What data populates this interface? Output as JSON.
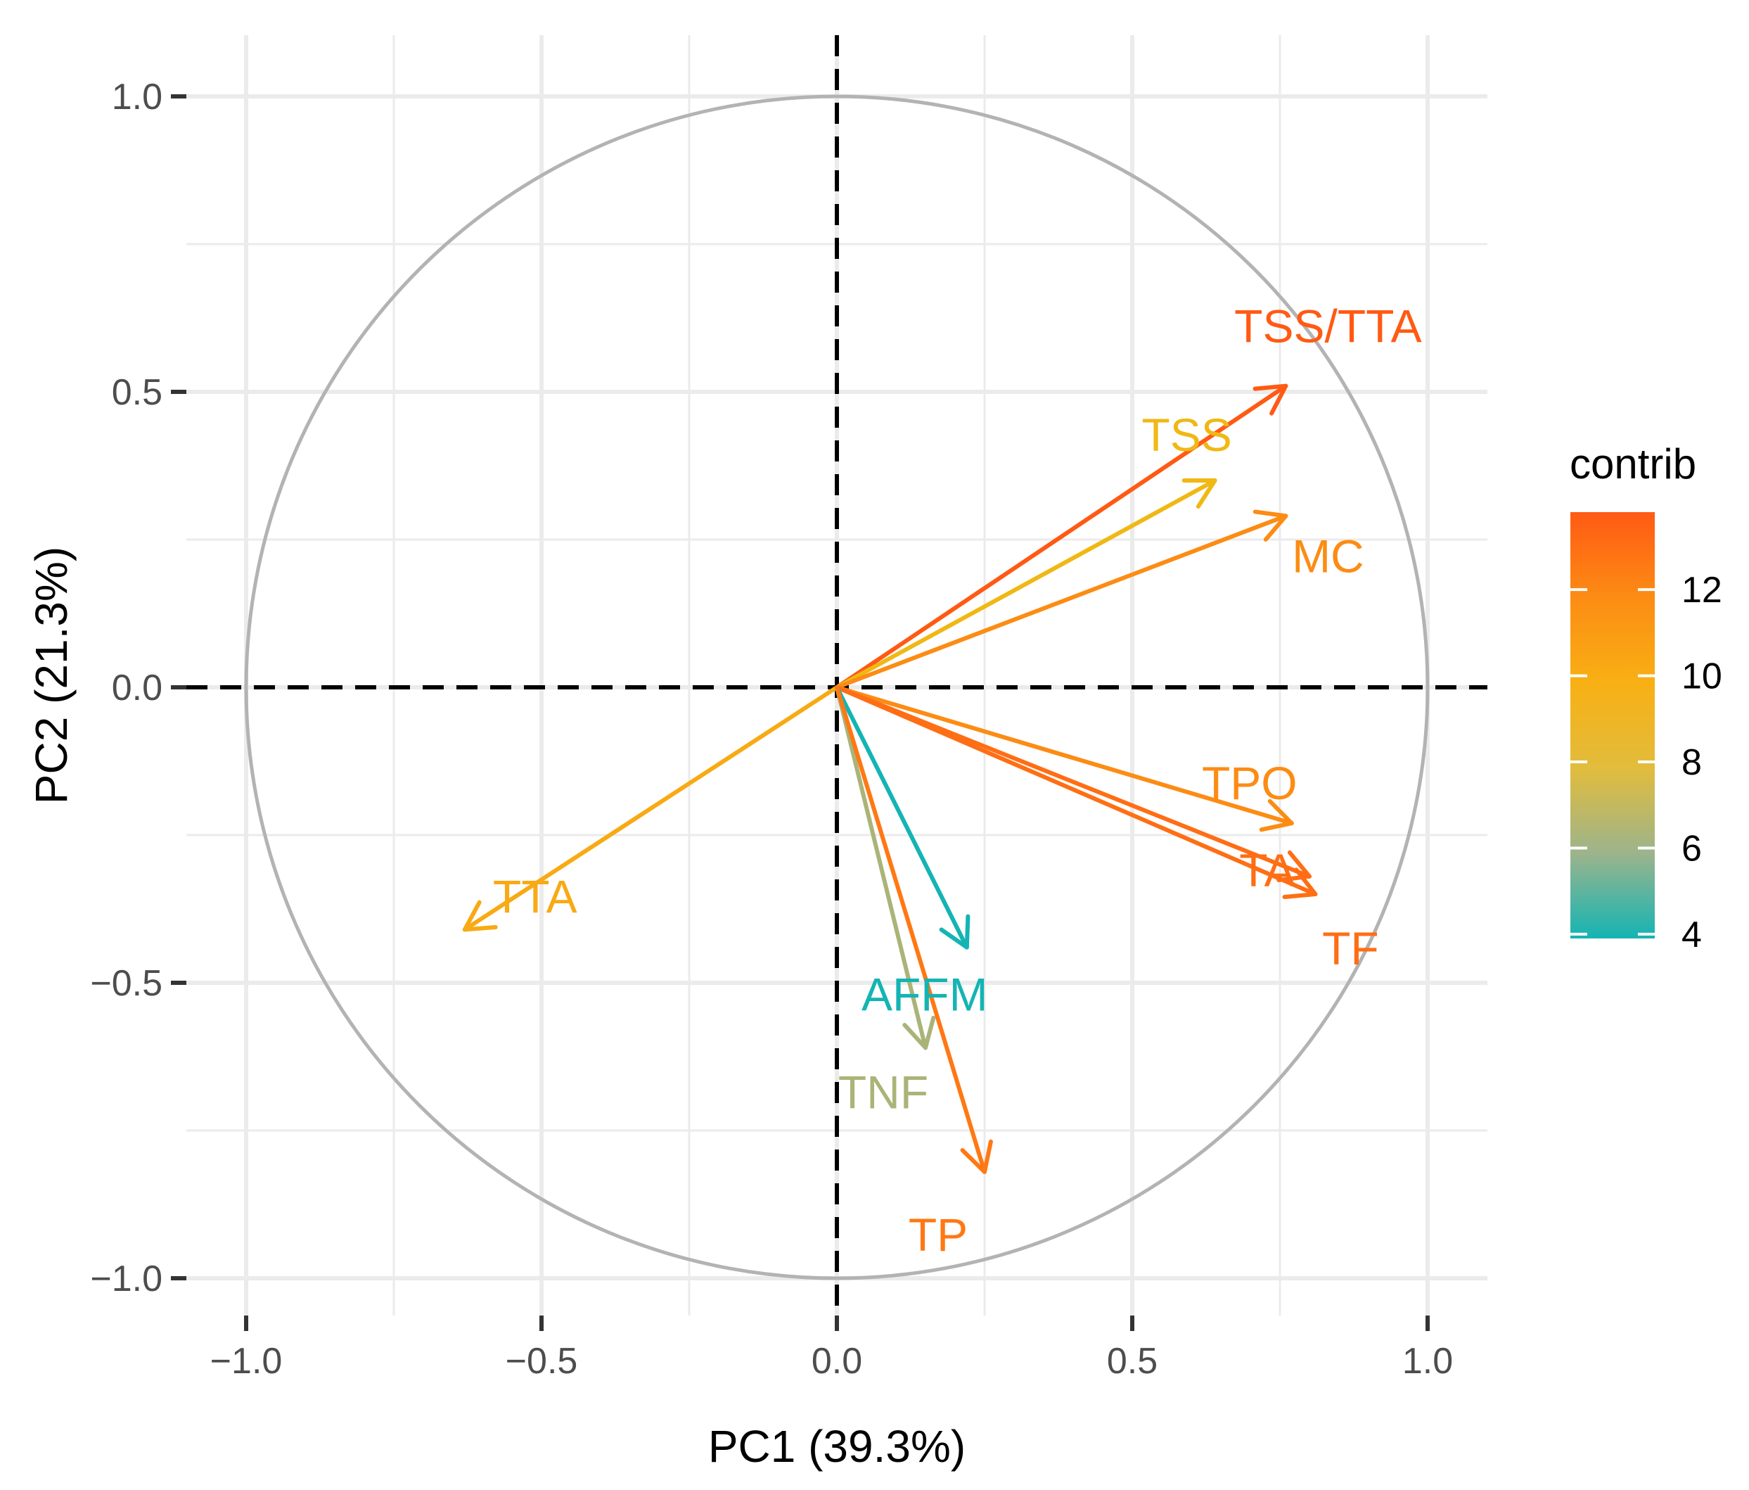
{
  "chart_data": {
    "type": "biplot-variables",
    "title": "",
    "xlabel": "PC1 (39.3%)",
    "ylabel": "PC2 (21.3%)",
    "xlim": [
      -1.1,
      1.1
    ],
    "ylim": [
      -1.1,
      1.1
    ],
    "x_ticks": [
      {
        "value": -1.0,
        "label": "−1.0"
      },
      {
        "value": -0.5,
        "label": "−0.5"
      },
      {
        "value": 0.0,
        "label": "0.0"
      },
      {
        "value": 0.5,
        "label": "0.5"
      },
      {
        "value": 1.0,
        "label": "1.0"
      }
    ],
    "y_ticks": [
      {
        "value": 1.0,
        "label": "1.0"
      },
      {
        "value": 0.5,
        "label": "0.5"
      },
      {
        "value": 0.0,
        "label": "0.0"
      },
      {
        "value": -0.5,
        "label": "−0.5"
      },
      {
        "value": -1.0,
        "label": "−1.0"
      }
    ],
    "grid": true,
    "unit_circle": true,
    "variables": [
      {
        "name": "TSS/TTA",
        "x": 0.76,
        "y": 0.51,
        "contrib": 13.5,
        "color": "#ff5a14"
      },
      {
        "name": "TSS",
        "x": 0.64,
        "y": 0.35,
        "contrib": 9.0,
        "color": "#f0b814"
      },
      {
        "name": "MC",
        "x": 0.76,
        "y": 0.29,
        "contrib": 11.0,
        "color": "#fc8c14"
      },
      {
        "name": "TPO",
        "x": 0.77,
        "y": -0.23,
        "contrib": 11.0,
        "color": "#fc8c14"
      },
      {
        "name": "TA",
        "x": 0.8,
        "y": -0.32,
        "contrib": 12.5,
        "color": "#ff6e14"
      },
      {
        "name": "TF",
        "x": 0.81,
        "y": -0.35,
        "contrib": 12.5,
        "color": "#ff6e14"
      },
      {
        "name": "TTA",
        "x": -0.63,
        "y": -0.41,
        "contrib": 9.5,
        "color": "#f8aa14"
      },
      {
        "name": "AFFM",
        "x": 0.22,
        "y": -0.44,
        "contrib": 4.0,
        "color": "#14b4b4"
      },
      {
        "name": "TNF",
        "x": 0.15,
        "y": -0.61,
        "contrib": 7.0,
        "color": "#aab478"
      },
      {
        "name": "TP",
        "x": 0.25,
        "y": -0.82,
        "contrib": 12.0,
        "color": "#ff7814"
      }
    ],
    "legend": {
      "title": "contrib",
      "position": "right",
      "range": [
        3.9,
        13.8
      ],
      "ticks": [
        {
          "value": 12,
          "label": "12"
        },
        {
          "value": 10,
          "label": "10"
        },
        {
          "value": 8,
          "label": "8"
        },
        {
          "value": 6,
          "label": "6"
        },
        {
          "value": 4,
          "label": "4"
        }
      ],
      "gradient_colors": [
        "#14b4b4",
        "#9cb48c",
        "#e2bc3c",
        "#f8b014",
        "#fc8c14",
        "#ff5a14"
      ]
    }
  }
}
